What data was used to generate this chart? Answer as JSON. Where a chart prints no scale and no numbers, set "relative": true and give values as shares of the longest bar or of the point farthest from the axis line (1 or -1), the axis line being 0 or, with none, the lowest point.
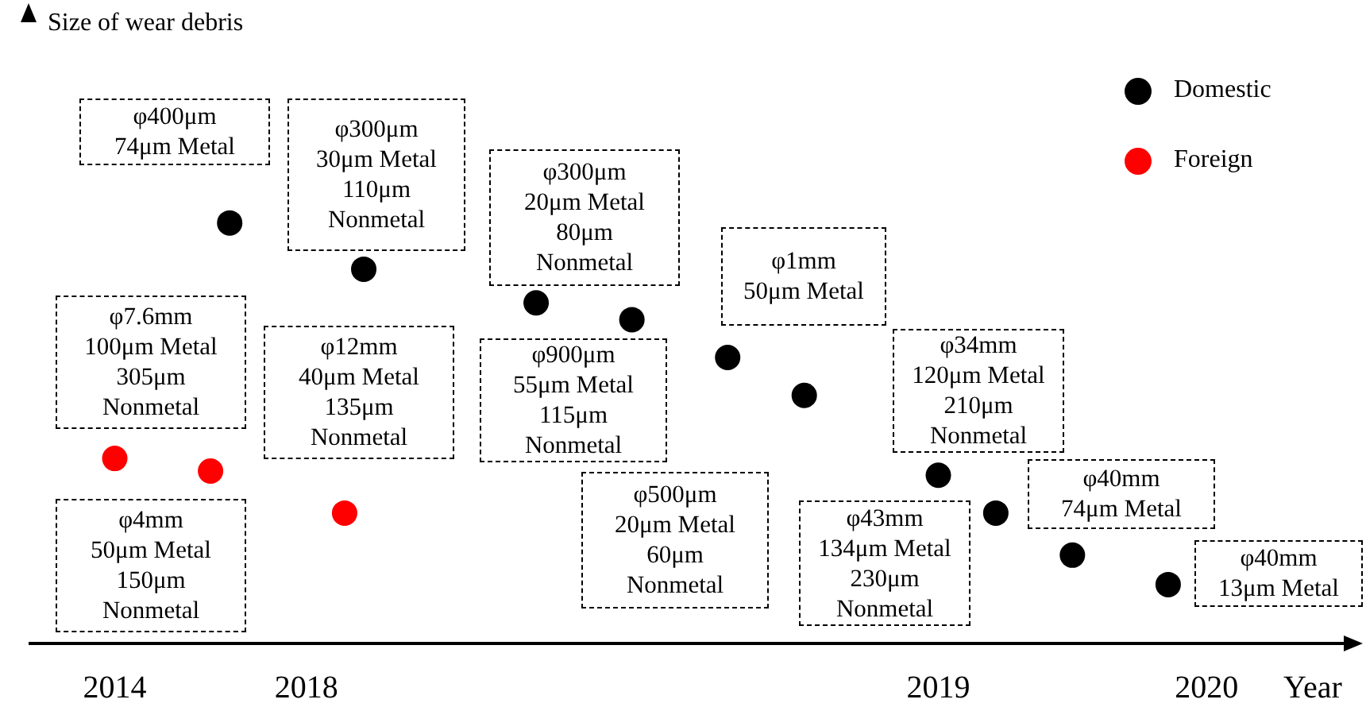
{
  "chart_data": {
    "type": "scatter",
    "relative": true,
    "xlabel": "Year",
    "legend": "top right",
    "marker": "circle",
    "grid": false,
    "categories": [
      null,
      null,
      null,
      null,
      "2014",
      null,
      null,
      null,
      null,
      null,
      null,
      null,
      null,
      null,
      "2018",
      null,
      null,
      null,
      null,
      null,
      null,
      null,
      null,
      null,
      null,
      null,
      null,
      null,
      null,
      null,
      null,
      null,
      null,
      null,
      null,
      null,
      null,
      null,
      null,
      null,
      null,
      null,
      null,
      null,
      null,
      null,
      null,
      "2019",
      null,
      null,
      null,
      null,
      null,
      null,
      null,
      null,
      null,
      null,
      null,
      null,
      null,
      "2020",
      null,
      null,
      null,
      null,
      null,
      null,
      null
    ],
    "series": [
      {
        "name": "Domestic",
        "color": "#000000",
        "values": [
          null,
          null,
          null,
          null,
          null,
          null,
          null,
          null,
          null,
          null,
          1,
          null,
          null,
          null,
          null,
          null,
          null,
          0.89,
          null,
          null,
          null,
          null,
          null,
          null,
          null,
          null,
          0.81,
          null,
          null,
          null,
          null,
          0.77,
          null,
          null,
          null,
          null,
          0.68,
          null,
          null,
          null,
          0.59,
          null,
          null,
          null,
          null,
          null,
          null,
          0.4,
          null,
          null,
          0.31,
          null,
          null,
          null,
          0.21,
          null,
          null,
          null,
          null,
          0.14,
          null,
          null,
          null,
          null,
          null,
          null,
          null,
          null,
          null
        ]
      },
      {
        "name": "Foreign",
        "color": "#ff0000",
        "values": [
          null,
          null,
          null,
          null,
          0.44,
          null,
          null,
          null,
          null,
          0.41,
          null,
          null,
          null,
          null,
          null,
          null,
          0.31,
          null,
          null,
          null,
          null,
          null,
          null,
          null,
          null,
          null,
          null,
          null,
          null,
          null,
          null,
          null,
          null,
          null,
          null,
          null,
          null,
          null,
          null,
          null,
          null,
          null,
          null,
          null,
          null,
          null,
          null,
          null,
          null,
          null,
          null,
          null,
          null,
          null,
          null,
          null,
          null,
          null,
          null,
          null,
          null,
          null,
          null,
          null,
          null,
          null,
          null,
          null,
          null
        ]
      }
    ],
    "annotations": [
      "Size of wear debris",
      "φ400μm\n74μm Metal",
      "φ300μm\n30μm Metal\n110μm\nNonmetal",
      "φ300μm\n20μm Metal\n80μm\nNonmetal",
      "φ7.6mm\n100μm Metal\n305μm\nNonmetal",
      "φ12mm\n40μm Metal\n135μm\nNonmetal",
      "φ900μm\n55μm Metal\n115μm\nNonmetal",
      "φ1mm\n50μm Metal",
      "φ34mm\n120μm Metal\n210μm\nNonmetal",
      "φ4mm\n50μm Metal\n150μm\nNonmetal",
      "φ500μm\n20μm Metal\n60μm\nNonmetal",
      "φ43mm\n134μm Metal\n230μm\nNonmetal",
      "φ40mm\n74μm Metal",
      "φ40mm\n13μm Metal"
    ]
  }
}
